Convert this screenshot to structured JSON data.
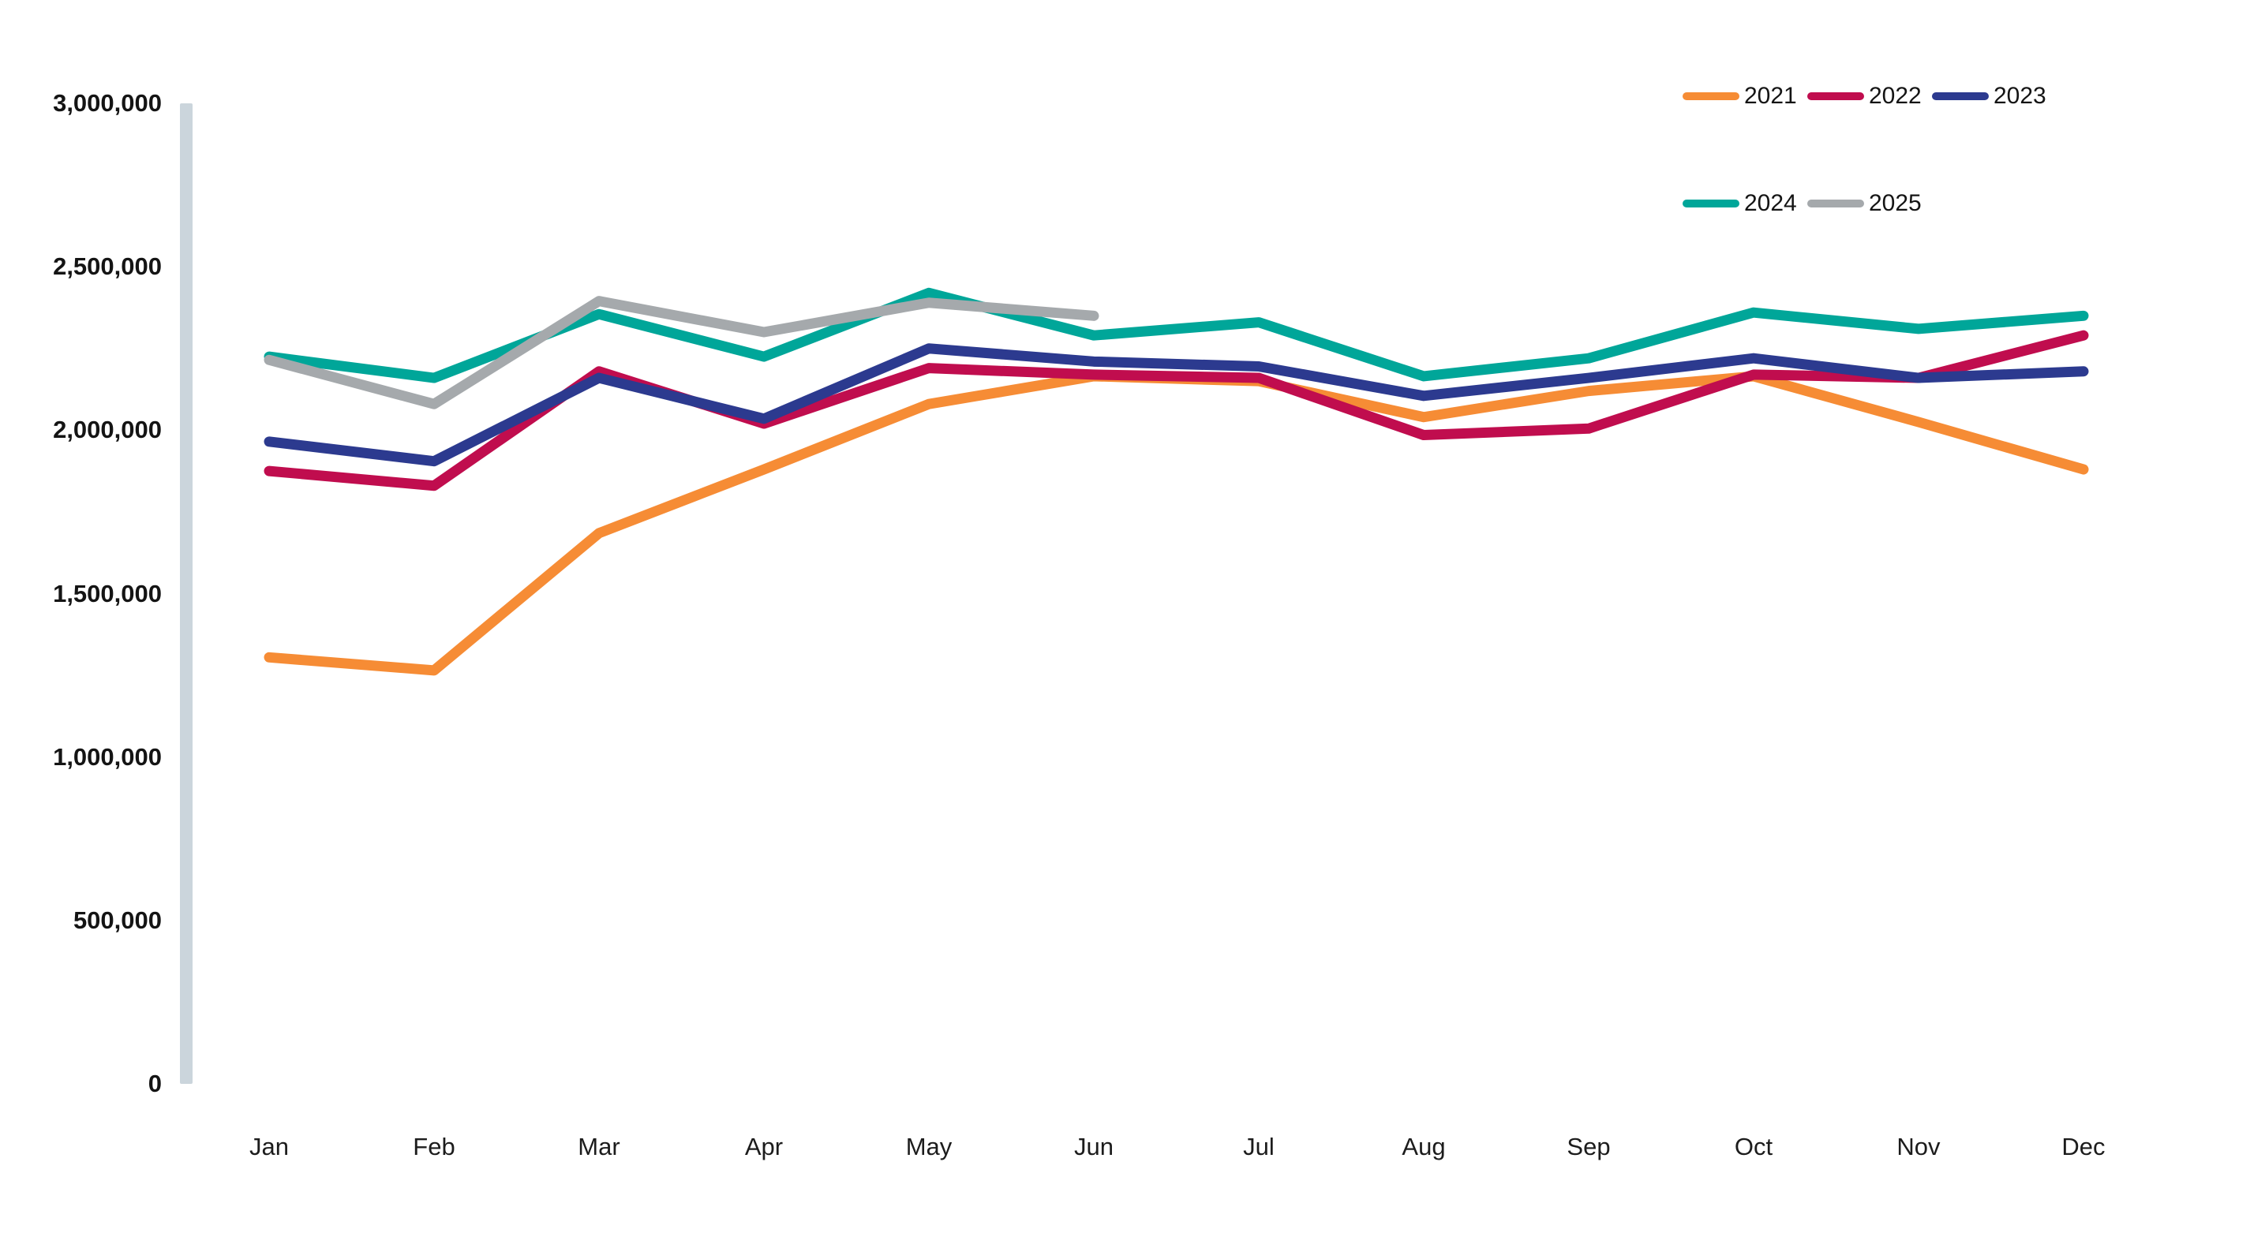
{
  "chart_data": {
    "type": "line",
    "title": "",
    "xlabel": "",
    "ylabel": "",
    "categories": [
      "Jan",
      "Feb",
      "Mar",
      "Apr",
      "May",
      "Jun",
      "Jul",
      "Aug",
      "Sep",
      "Oct",
      "Nov",
      "Dec"
    ],
    "series": [
      {
        "name": "2021",
        "color": "#F68C35",
        "values": [
          1305000,
          1265000,
          1685000,
          1880000,
          2080000,
          2165000,
          2150000,
          2040000,
          2120000,
          2165000,
          2025000,
          1880000
        ]
      },
      {
        "name": "2022",
        "color": "#C00D4E",
        "values": [
          1875000,
          1830000,
          2180000,
          2020000,
          2190000,
          2170000,
          2160000,
          1985000,
          2005000,
          2170000,
          2160000,
          2290000
        ]
      },
      {
        "name": "2023",
        "color": "#2C3A8F",
        "values": [
          1965000,
          1905000,
          2160000,
          2035000,
          2250000,
          2210000,
          2195000,
          2105000,
          2160000,
          2220000,
          2160000,
          2180000
        ]
      },
      {
        "name": "2024",
        "color": "#00A699",
        "values": [
          2225000,
          2160000,
          2355000,
          2225000,
          2420000,
          2290000,
          2330000,
          2165000,
          2220000,
          2360000,
          2310000,
          2350000
        ]
      },
      {
        "name": "2025",
        "color": "#A5A9AC",
        "values": [
          2215000,
          2080000,
          2395000,
          2300000,
          2390000,
          2350000
        ]
      }
    ],
    "y_axis": {
      "labels": [
        "0",
        "500,000",
        "1,000,000",
        "1,500,000",
        "2,000,000",
        "2,500,000",
        "3,000,000"
      ],
      "values": [
        0,
        500000,
        1000000,
        1500000,
        2000000,
        2500000,
        3000000
      ]
    },
    "ylim": [
      0,
      3000000
    ],
    "grid": false,
    "legend_position": "top-right",
    "legend_rows": [
      [
        0,
        1,
        2
      ],
      [
        3,
        4
      ]
    ],
    "axis_bar_color": "#CBD5DC",
    "text_color": "#141414",
    "background": "#FFFFFF"
  }
}
